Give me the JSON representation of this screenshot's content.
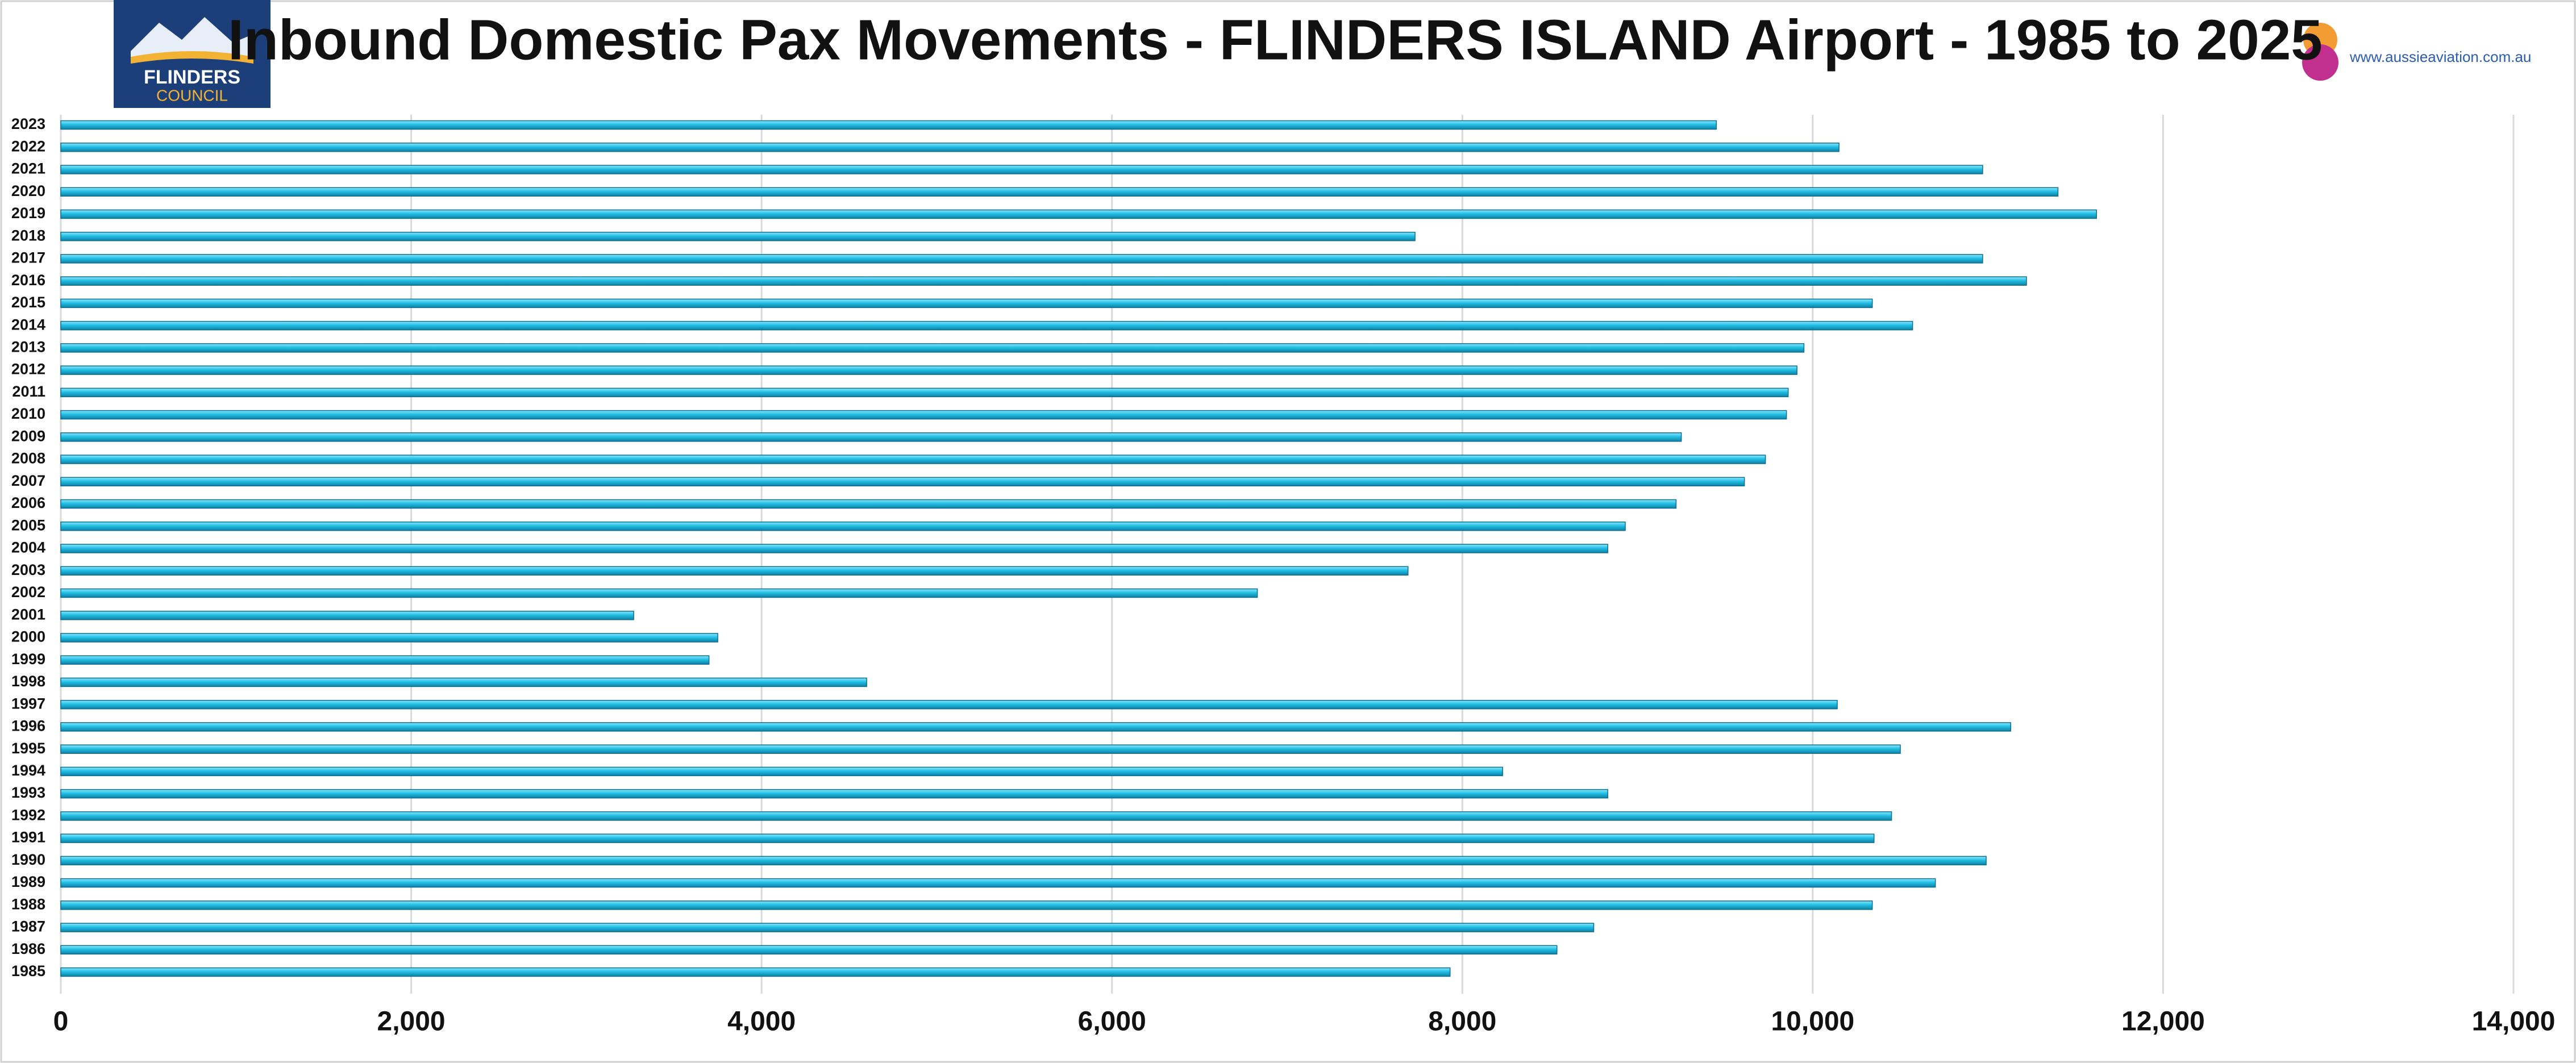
{
  "logo_left": {
    "line1": "FLINDERS",
    "line2": "COUNCIL"
  },
  "logo_right": "www.aussieaviation.com.au",
  "chart_data": {
    "type": "hbar",
    "title": "Inbound Domestic Pax Movements - FLINDERS ISLAND Airport - 1985 to 2025",
    "categories": [
      "2023",
      "2022",
      "2021",
      "2020",
      "2019",
      "2018",
      "2017",
      "2016",
      "2015",
      "2014",
      "2013",
      "2012",
      "2011",
      "2010",
      "2009",
      "2008",
      "2007",
      "2006",
      "2005",
      "2004",
      "2003",
      "2002",
      "2001",
      "2000",
      "1999",
      "1998",
      "1997",
      "1996",
      "1995",
      "1994",
      "1993",
      "1992",
      "1991",
      "1990",
      "1989",
      "1988",
      "1987",
      "1986",
      "1985"
    ],
    "values": [
      9450,
      10150,
      10970,
      11400,
      11620,
      7730,
      10970,
      11220,
      10340,
      10570,
      9950,
      9910,
      9860,
      9850,
      9250,
      9730,
      9610,
      9220,
      8930,
      8830,
      7690,
      6830,
      3270,
      3750,
      3700,
      4600,
      10140,
      11130,
      10500,
      8230,
      8830,
      10450,
      10350,
      10990,
      10700,
      10340,
      8750,
      8540,
      7930
    ],
    "color": "#22c0e6",
    "xlim": [
      0,
      14000
    ],
    "xticks": [
      0,
      {
        "value": 2000,
        "label": "2,000"
      },
      {
        "value": 4000,
        "label": "4,000"
      },
      {
        "value": 6000,
        "label": "6,000"
      },
      {
        "value": 8000,
        "label": "8,000"
      },
      {
        "value": 10000,
        "label": "10,000"
      },
      {
        "value": 12000,
        "label": "12,000"
      },
      {
        "value": 14000,
        "label": "14,000"
      }
    ],
    "grid": true
  }
}
